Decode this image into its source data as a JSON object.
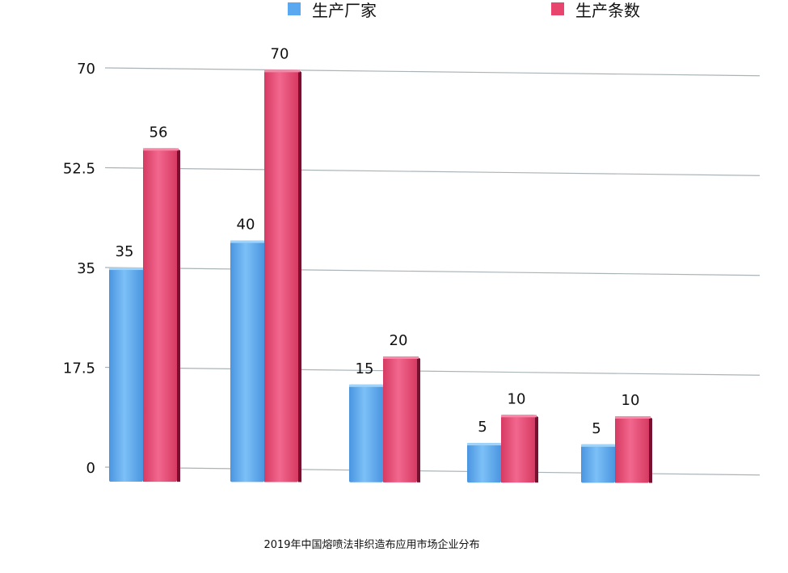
{
  "chart_data": {
    "type": "bar",
    "title": "",
    "caption": "2019年中国熔喷法非织造布应用市场企业分布",
    "xlabel": "",
    "ylabel": "",
    "categories": [
      "",
      "",
      "",
      "",
      ""
    ],
    "series": [
      {
        "name": "生产厂家",
        "values": [
          35,
          40,
          15,
          5,
          5
        ],
        "color": "#5aa9f0"
      },
      {
        "name": "生产条数",
        "values": [
          56,
          70,
          20,
          10,
          10
        ],
        "color": "#e8456e"
      }
    ],
    "yticks": [
      "0",
      "17.5",
      "35",
      "52.5",
      "70"
    ],
    "ylim": [
      0,
      70
    ],
    "grid": true,
    "legend_position": "top"
  }
}
